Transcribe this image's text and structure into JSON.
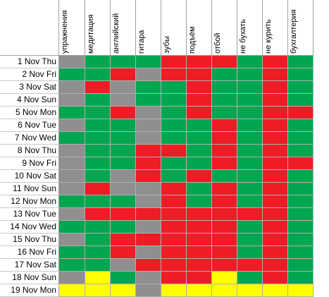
{
  "sheet": {
    "columns": [
      "упражнения",
      "медитация",
      "английский",
      "гитара",
      "зубы",
      "подъём",
      "отбой",
      "не бухать",
      "не курить",
      "бухгалтерия"
    ],
    "rows": [
      {
        "label": "1 Nov Thu",
        "cells": [
          "x",
          "g",
          "g",
          "g",
          "r",
          "r",
          "r",
          "g",
          "r",
          "g"
        ]
      },
      {
        "label": "2 Nov Fri",
        "cells": [
          "g",
          "g",
          "r",
          "x",
          "r",
          "r",
          "g",
          "g",
          "r",
          "g"
        ]
      },
      {
        "label": "3 Nov Sat",
        "cells": [
          "x",
          "r",
          "x",
          "g",
          "g",
          "r",
          "g",
          "g",
          "r",
          "g"
        ]
      },
      {
        "label": "4 Nov Sun",
        "cells": [
          "x",
          "g",
          "x",
          "g",
          "g",
          "r",
          "g",
          "g",
          "r",
          "g"
        ]
      },
      {
        "label": "5 Nov Mon",
        "cells": [
          "g",
          "g",
          "r",
          "x",
          "g",
          "r",
          "g",
          "g",
          "r",
          "r"
        ]
      },
      {
        "label": "6 Nov Tue",
        "cells": [
          "x",
          "g",
          "g",
          "x",
          "g",
          "g",
          "r",
          "g",
          "r",
          "g"
        ]
      },
      {
        "label": "7 Nov Wed",
        "cells": [
          "g",
          "g",
          "g",
          "x",
          "g",
          "g",
          "r",
          "g",
          "r",
          "g"
        ]
      },
      {
        "label": "8 Nov Thu",
        "cells": [
          "x",
          "g",
          "g",
          "r",
          "r",
          "g",
          "r",
          "g",
          "r",
          "g"
        ]
      },
      {
        "label": "9 Nov Fri",
        "cells": [
          "x",
          "g",
          "g",
          "r",
          "g",
          "g",
          "r",
          "g",
          "r",
          "r"
        ]
      },
      {
        "label": "10 Nov Sat",
        "cells": [
          "x",
          "g",
          "x",
          "r",
          "g",
          "r",
          "g",
          "g",
          "r",
          "g"
        ]
      },
      {
        "label": "11 Nov Sun",
        "cells": [
          "x",
          "r",
          "x",
          "x",
          "r",
          "g",
          "r",
          "g",
          "r",
          "g"
        ]
      },
      {
        "label": "12 Nov Mon",
        "cells": [
          "g",
          "g",
          "g",
          "x",
          "r",
          "g",
          "r",
          "g",
          "r",
          "g"
        ]
      },
      {
        "label": "13 Nov Tue",
        "cells": [
          "x",
          "r",
          "r",
          "r",
          "r",
          "r",
          "r",
          "r",
          "r",
          "g"
        ]
      },
      {
        "label": "14 Nov Wed",
        "cells": [
          "g",
          "g",
          "g",
          "x",
          "r",
          "r",
          "r",
          "g",
          "r",
          "g"
        ]
      },
      {
        "label": "15 Nov Thu",
        "cells": [
          "x",
          "g",
          "r",
          "r",
          "r",
          "r",
          "r",
          "g",
          "r",
          "g"
        ]
      },
      {
        "label": "16 Nov Fri",
        "cells": [
          "g",
          "g",
          "r",
          "x",
          "r",
          "r",
          "r",
          "g",
          "r",
          "g"
        ]
      },
      {
        "label": "17 Nov Sat",
        "cells": [
          "g",
          "g",
          "x",
          "r",
          "r",
          "r",
          "r",
          "r",
          "r",
          "g"
        ]
      },
      {
        "label": "18 Nov Sun",
        "cells": [
          "x",
          "y",
          "g",
          "x",
          "r",
          "r",
          "y",
          "g",
          "r",
          "g"
        ]
      },
      {
        "label": "19 Nov Mon",
        "cells": [
          "y",
          "y",
          "y",
          "x",
          "y",
          "y",
          "y",
          "y",
          "y",
          "y"
        ]
      }
    ]
  }
}
